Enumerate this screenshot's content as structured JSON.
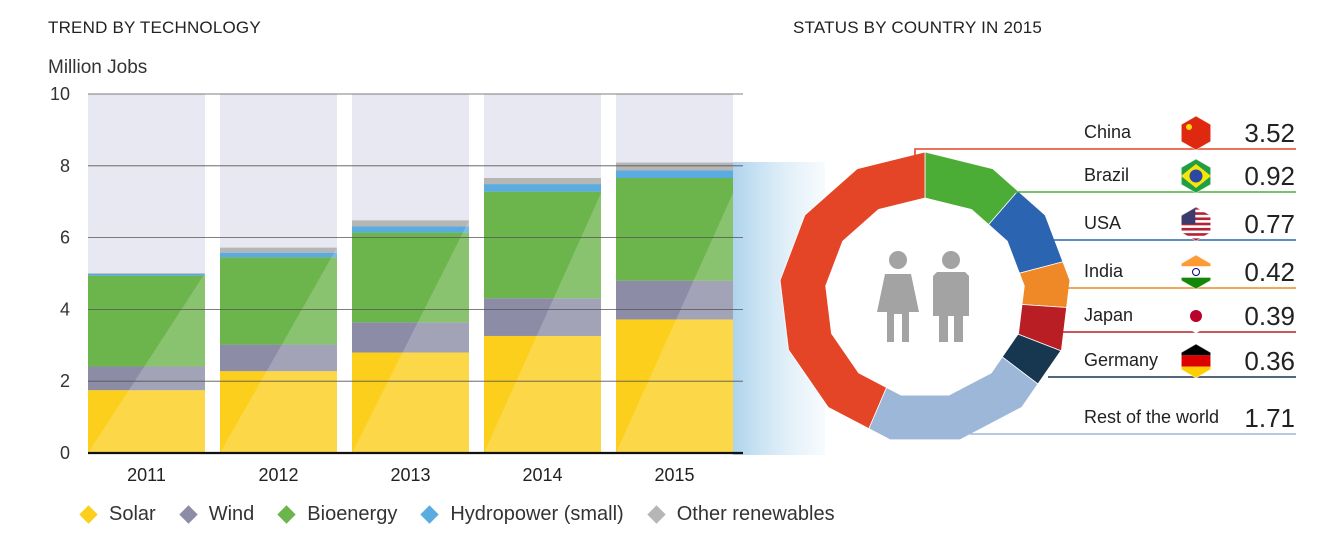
{
  "left_title": "TREND BY TECHNOLOGY",
  "right_title": "STATUS BY COUNTRY IN 2015",
  "chart_data": [
    {
      "type": "bar",
      "stacked": true,
      "title": "TREND BY TECHNOLOGY",
      "ylabel": "Million Jobs",
      "ylim": [
        0,
        10
      ],
      "yticks": [
        0,
        2,
        4,
        6,
        8,
        10
      ],
      "grid": true,
      "categories": [
        "2011",
        "2012",
        "2013",
        "2014",
        "2015"
      ],
      "series": [
        {
          "name": "Solar",
          "color": "#fccf1c",
          "values": [
            1.75,
            2.28,
            2.8,
            3.26,
            3.72
          ]
        },
        {
          "name": "Wind",
          "color": "#8c8ca7",
          "values": [
            0.66,
            0.74,
            0.84,
            1.05,
            1.08
          ]
        },
        {
          "name": "Bioenergy",
          "color": "#6cb44c",
          "values": [
            2.53,
            2.43,
            2.5,
            2.97,
            2.86
          ]
        },
        {
          "name": "Hydropower (small)",
          "color": "#5aabe0",
          "values": [
            0.05,
            0.13,
            0.17,
            0.21,
            0.21
          ]
        },
        {
          "name": "Other renewables",
          "color": "#b6b6b6",
          "values": [
            0.02,
            0.14,
            0.17,
            0.17,
            0.22
          ]
        }
      ],
      "background_color": "#e8e8f2",
      "legend_position": "bottom"
    },
    {
      "type": "pie",
      "title": "STATUS BY COUNTRY IN 2015",
      "hole": true,
      "slices": [
        {
          "label": "China",
          "value": 3.52,
          "display": "3.52",
          "color": "#e44526"
        },
        {
          "label": "Brazil",
          "value": 0.92,
          "display": "0.92",
          "color": "#4bad35"
        },
        {
          "label": "USA",
          "value": 0.77,
          "display": "0.77",
          "color": "#2b65b2"
        },
        {
          "label": "India",
          "value": 0.42,
          "display": "0.42",
          "color": "#ef8826"
        },
        {
          "label": "Japan",
          "value": 0.39,
          "display": "0.39",
          "color": "#b81e24"
        },
        {
          "label": "Germany",
          "value": 0.36,
          "display": "0.36",
          "color": "#16374f"
        },
        {
          "label": "Rest of the world",
          "value": 1.71,
          "display": "1.71",
          "color": "#9db7d9"
        }
      ]
    }
  ],
  "icons": {
    "center": "people-icon",
    "flags": [
      "china-flag-icon",
      "brazil-flag-icon",
      "usa-flag-icon",
      "india-flag-icon",
      "japan-flag-icon",
      "germany-flag-icon"
    ]
  }
}
